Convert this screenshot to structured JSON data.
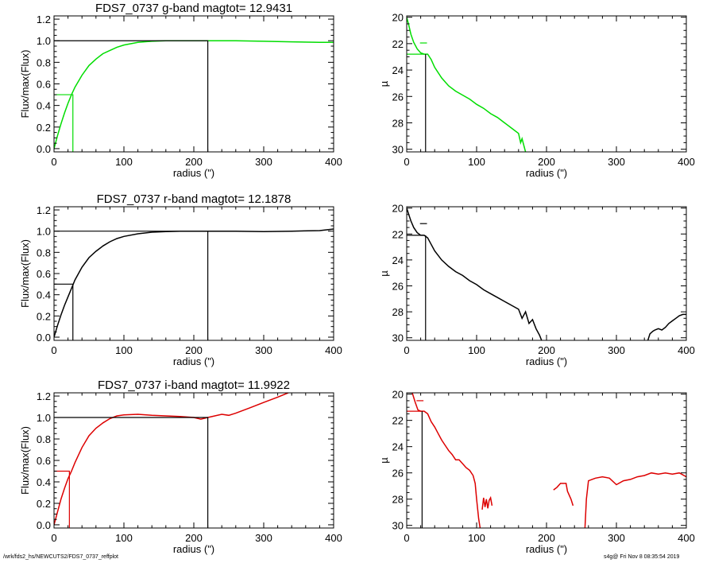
{
  "footer": {
    "path": "/wrk/fds2_hs/NEWCUTS2/FDS7_0737_reffplot",
    "stamp": "s4g@  Fri Nov  8 08:35:54 2019"
  },
  "chart_data": [
    {
      "type": "line",
      "title": "FDS7_0737 g-band  magtot=      12.9431",
      "xlabel": "radius (\")",
      "ylabel": "Flux/max(Flux)",
      "xlim": [
        0,
        400
      ],
      "ylim": [
        -0.03,
        1.23
      ],
      "xticks": [
        0,
        100,
        200,
        300,
        400
      ],
      "yticks": [
        0.0,
        0.2,
        0.4,
        0.6,
        0.8,
        1.0,
        1.2
      ],
      "ytick_labels": [
        "0.0",
        "0.2",
        "0.4",
        "0.6",
        "0.8",
        "1.0",
        "1.2"
      ],
      "color": "#00dd00",
      "curve": {
        "x": [
          0,
          5,
          10,
          15,
          20,
          25,
          30,
          40,
          50,
          60,
          70,
          80,
          90,
          100,
          120,
          140,
          160,
          180,
          200,
          220,
          260,
          300,
          340,
          380,
          400
        ],
        "y": [
          0,
          0.12,
          0.23,
          0.33,
          0.42,
          0.5,
          0.57,
          0.68,
          0.77,
          0.83,
          0.88,
          0.91,
          0.94,
          0.96,
          0.985,
          0.995,
          1.0,
          1.0,
          1.0,
          1.0,
          1.0,
          0.995,
          0.99,
          0.985,
          0.985
        ]
      },
      "half_marker": {
        "x": 27,
        "y": 0.5
      },
      "total_marker": {
        "x": 220,
        "y": 1.0
      }
    },
    {
      "type": "line",
      "ylabel": "µ",
      "xlabel": "radius (\")",
      "xlim": [
        0,
        400
      ],
      "ylim": [
        30.2,
        19.9
      ],
      "xticks": [
        0,
        100,
        200,
        300,
        400
      ],
      "yticks": [
        20,
        22,
        24,
        26,
        28,
        30
      ],
      "color": "#00dd00",
      "segments": [
        {
          "x": [
            0,
            3,
            6,
            10,
            15,
            20,
            25,
            30,
            35,
            40,
            50,
            60,
            70,
            80,
            90,
            100,
            110,
            120,
            130,
            140,
            150,
            160,
            163,
            165,
            170
          ],
          "y": [
            20.0,
            20.6,
            21.3,
            21.9,
            22.4,
            22.7,
            22.8,
            22.8,
            23.2,
            23.8,
            24.6,
            25.2,
            25.6,
            25.9,
            26.2,
            26.6,
            26.9,
            27.3,
            27.6,
            28.0,
            28.4,
            28.8,
            29.5,
            29.2,
            30.2
          ]
        }
      ],
      "hline": {
        "y": 22.8,
        "x_end": 25
      },
      "tick_mark": {
        "x": 25,
        "y": 21.95
      },
      "vline": {
        "x": 27
      }
    },
    {
      "type": "line",
      "title": "FDS7_0737 r-band  magtot=      12.1878",
      "xlabel": "radius (\")",
      "ylabel": "Flux/max(Flux)",
      "xlim": [
        0,
        400
      ],
      "ylim": [
        -0.03,
        1.23
      ],
      "xticks": [
        0,
        100,
        200,
        300,
        400
      ],
      "yticks": [
        0.0,
        0.2,
        0.4,
        0.6,
        0.8,
        1.0,
        1.2
      ],
      "ytick_labels": [
        "0.0",
        "0.2",
        "0.4",
        "0.6",
        "0.8",
        "1.0",
        "1.2"
      ],
      "color": "#000000",
      "curve": {
        "x": [
          0,
          5,
          10,
          15,
          20,
          25,
          30,
          40,
          50,
          60,
          70,
          80,
          90,
          100,
          120,
          140,
          160,
          180,
          200,
          220,
          260,
          300,
          340,
          380,
          400
        ],
        "y": [
          0,
          0.11,
          0.21,
          0.3,
          0.38,
          0.46,
          0.54,
          0.66,
          0.75,
          0.81,
          0.86,
          0.9,
          0.93,
          0.95,
          0.975,
          0.99,
          0.995,
          1.0,
          1.0,
          1.0,
          1.0,
          0.995,
          1.0,
          1.005,
          1.02
        ]
      },
      "half_marker": {
        "x": 27,
        "y": 0.5
      },
      "total_marker": {
        "x": 220,
        "y": 1.0
      }
    },
    {
      "type": "line",
      "ylabel": "µ",
      "xlabel": "radius (\")",
      "xlim": [
        0,
        400
      ],
      "ylim": [
        30.2,
        19.9
      ],
      "xticks": [
        0,
        100,
        200,
        300,
        400
      ],
      "yticks": [
        20,
        22,
        24,
        26,
        28,
        30
      ],
      "color": "#000000",
      "segments": [
        {
          "x": [
            0,
            3,
            6,
            10,
            15,
            20,
            25,
            30,
            35,
            40,
            50,
            60,
            70,
            80,
            90,
            100,
            110,
            120,
            130,
            140,
            150,
            160,
            165,
            170,
            175,
            180,
            185,
            190,
            193
          ],
          "y": [
            20.0,
            20.5,
            21.0,
            21.5,
            21.9,
            22.1,
            22.1,
            22.3,
            22.8,
            23.3,
            24.0,
            24.5,
            24.9,
            25.2,
            25.6,
            25.9,
            26.3,
            26.6,
            26.9,
            27.2,
            27.5,
            27.8,
            28.5,
            28.0,
            28.9,
            28.6,
            29.3,
            29.8,
            30.2
          ]
        },
        {
          "x": [
            345,
            348,
            352,
            355,
            360,
            365,
            370,
            375,
            380,
            385,
            390,
            395,
            400
          ],
          "y": [
            30.2,
            29.7,
            29.5,
            29.4,
            29.3,
            29.4,
            29.2,
            28.9,
            28.7,
            28.5,
            28.3,
            28.2,
            28.2
          ]
        }
      ],
      "hline": {
        "y": 22.1,
        "x_end": 25
      },
      "tick_mark": {
        "x": 25,
        "y": 21.2
      },
      "vline": {
        "x": 27
      }
    },
    {
      "type": "line",
      "title": "FDS7_0737 i-band  magtot=      11.9922",
      "xlabel": "radius (\")",
      "ylabel": "Flux/max(Flux)",
      "xlim": [
        0,
        400
      ],
      "ylim": [
        -0.03,
        1.23
      ],
      "xticks": [
        0,
        100,
        200,
        300,
        400
      ],
      "yticks": [
        0.0,
        0.2,
        0.4,
        0.6,
        0.8,
        1.0,
        1.2
      ],
      "ytick_labels": [
        "0.0",
        "0.2",
        "0.4",
        "0.6",
        "0.8",
        "1.0",
        "1.2"
      ],
      "color": "#dd0000",
      "curve": {
        "x": [
          0,
          5,
          10,
          15,
          20,
          25,
          30,
          40,
          50,
          60,
          70,
          80,
          90,
          100,
          120,
          140,
          160,
          180,
          200,
          210,
          220,
          240,
          250,
          260,
          280,
          300,
          320,
          335
        ],
        "y": [
          0,
          0.12,
          0.24,
          0.34,
          0.43,
          0.5,
          0.58,
          0.72,
          0.83,
          0.9,
          0.95,
          0.99,
          1.015,
          1.025,
          1.03,
          1.02,
          1.015,
          1.01,
          1.0,
          0.985,
          1.0,
          1.03,
          1.02,
          1.04,
          1.09,
          1.14,
          1.19,
          1.23
        ]
      },
      "half_marker": {
        "x": 22,
        "y": 0.5
      },
      "total_marker": {
        "x": 220,
        "y": 1.0
      }
    },
    {
      "type": "line",
      "ylabel": "µ",
      "xlabel": "radius (\")",
      "xlim": [
        0,
        400
      ],
      "ylim": [
        30.2,
        19.9
      ],
      "xticks": [
        0,
        100,
        200,
        300,
        400
      ],
      "yticks": [
        20,
        22,
        24,
        26,
        28,
        30
      ],
      "color": "#dd0000",
      "segments": [
        {
          "x": [
            8,
            12,
            16,
            20,
            25,
            30,
            35,
            40,
            45,
            50,
            55,
            60,
            65,
            70,
            75,
            80,
            85,
            90,
            95,
            98,
            100,
            103,
            105
          ],
          "y": [
            19.9,
            20.6,
            21.2,
            21.3,
            21.3,
            21.5,
            22.1,
            22.5,
            23.0,
            23.5,
            23.9,
            24.3,
            24.6,
            25.0,
            25.0,
            25.3,
            25.6,
            25.8,
            26.2,
            26.8,
            28.0,
            29.5,
            30.2
          ]
        },
        {
          "x": [
            108,
            110,
            112,
            114,
            116,
            118,
            120,
            122
          ],
          "y": [
            28.8,
            27.9,
            28.6,
            28.0,
            28.7,
            28.1,
            27.9,
            28.5
          ]
        },
        {
          "x": [
            210,
            215,
            220,
            225,
            228,
            230,
            235,
            238
          ],
          "y": [
            27.3,
            27.1,
            26.8,
            26.8,
            26.8,
            27.4,
            28.0,
            28.5
          ]
        },
        {
          "x": [
            255,
            257,
            260,
            265,
            270,
            280,
            290,
            300,
            310,
            320,
            330,
            340,
            350,
            360,
            370,
            380,
            390,
            400
          ],
          "y": [
            30.2,
            28.0,
            26.6,
            26.5,
            26.4,
            26.3,
            26.4,
            26.9,
            26.6,
            26.5,
            26.3,
            26.2,
            26.0,
            26.1,
            26.0,
            26.1,
            26.0,
            26.3
          ]
        }
      ],
      "hline": {
        "y": 21.3,
        "x_end": 20
      },
      "tick_mark": {
        "x": 20,
        "y": 20.5
      },
      "vline": {
        "x": 22
      }
    }
  ]
}
